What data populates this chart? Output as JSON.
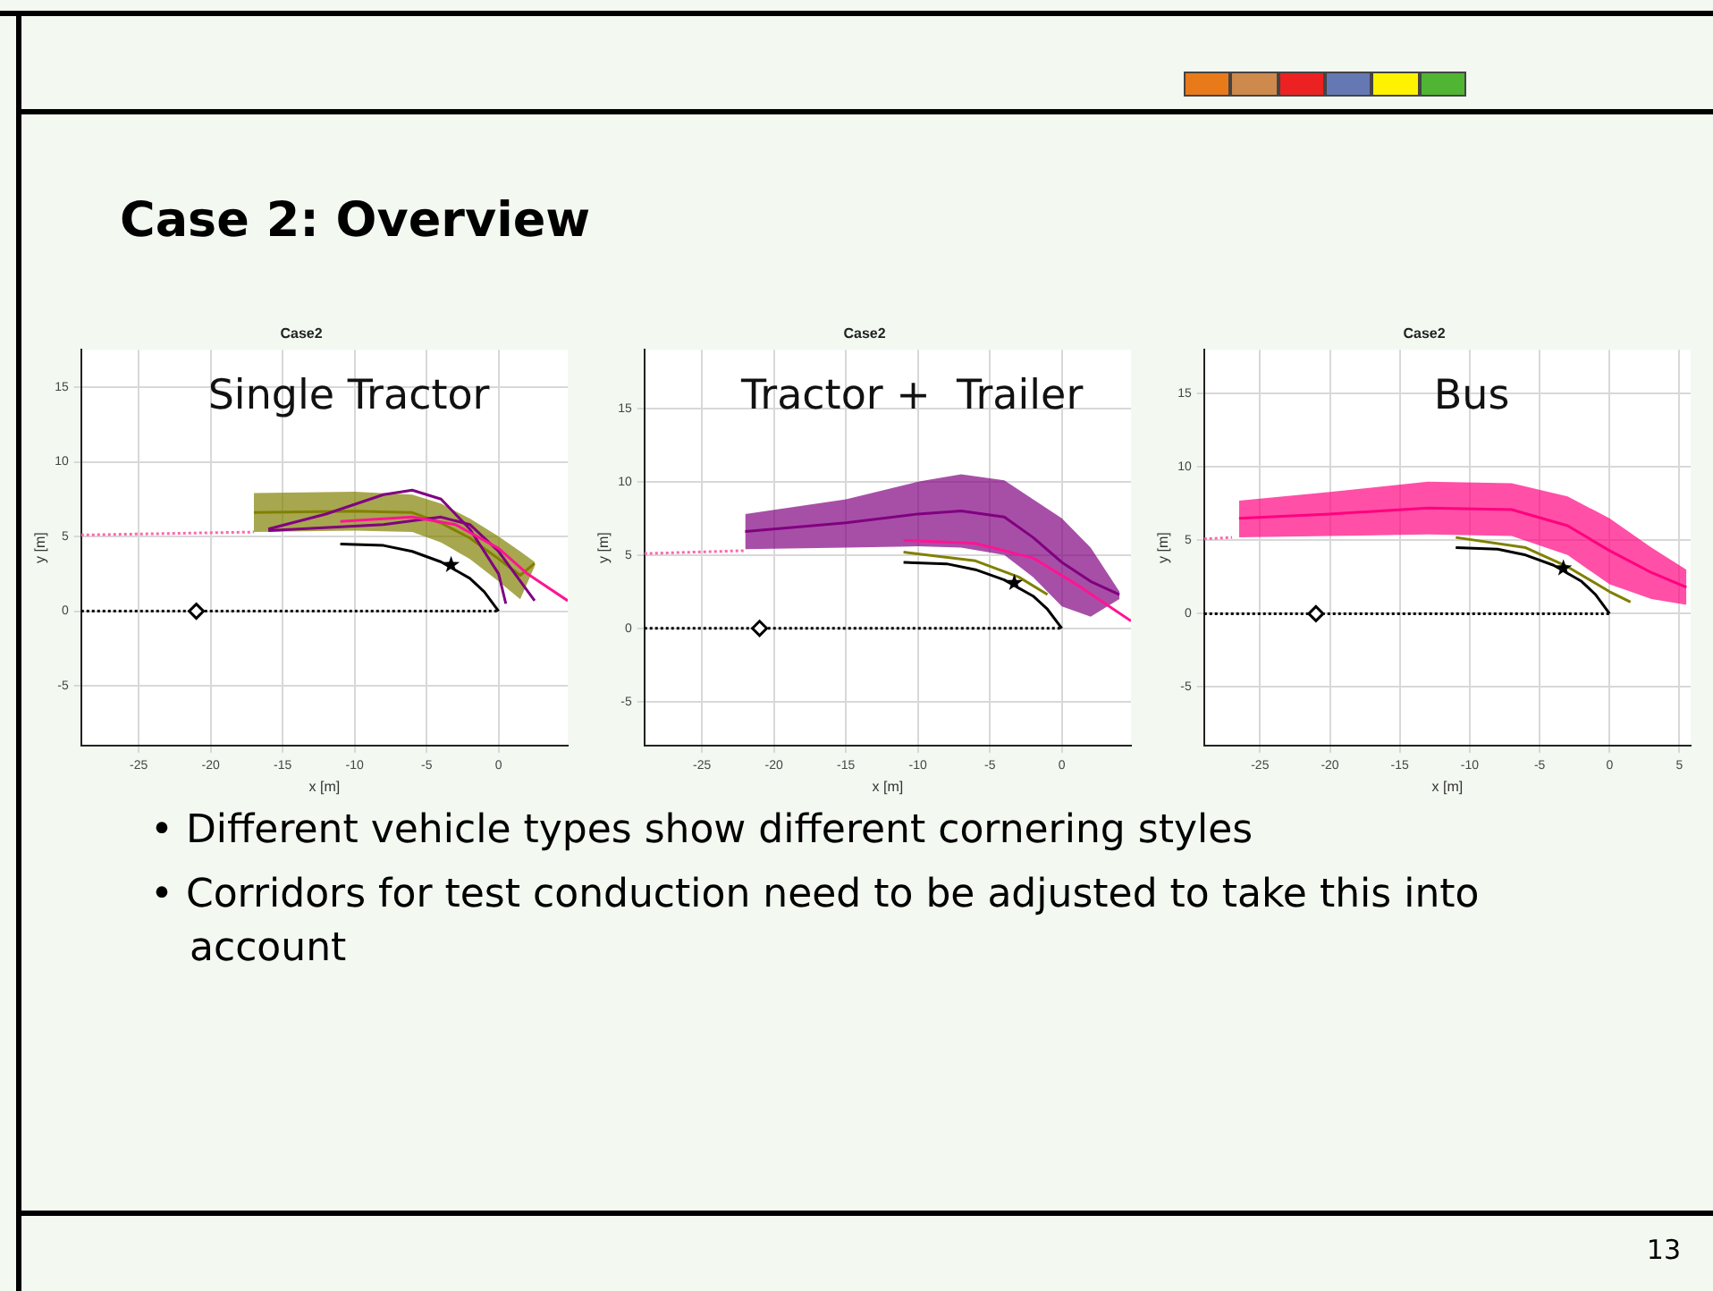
{
  "chart_data": [
    {
      "type": "line",
      "title": "Case2",
      "xlabel": "x [m]",
      "ylabel": "y [m]",
      "annotations": [
        "Single Tractor"
      ],
      "xlim": [
        -29,
        4.8
      ],
      "ylim": [
        -9,
        17.5
      ],
      "xticks": [
        -25,
        -20,
        -15,
        -10,
        -5,
        0
      ],
      "yticks": [
        -5,
        0,
        5,
        10,
        15
      ],
      "grid": true,
      "legend": false,
      "series": [
        {
          "color": "#000000",
          "x": [
            -29,
            0
          ],
          "values": [
            0,
            0
          ],
          "line_style": "dotted",
          "marker": "none"
        },
        {
          "color": "#ff66aa",
          "x": [
            -29,
            -17
          ],
          "values": [
            5.1,
            5.3
          ],
          "line_style": "dotted",
          "marker": "none"
        },
        {
          "color": "#808000",
          "x": [
            -17,
            -10,
            -6,
            -4,
            -2,
            0,
            1.5,
            2.5
          ],
          "values": [
            6.6,
            6.7,
            6.6,
            5.9,
            4.9,
            3.5,
            2.4,
            3.2
          ],
          "lower": [
            5.3,
            5.4,
            5.3,
            4.6,
            3.5,
            2.0,
            0.8,
            3.0
          ],
          "upper": [
            7.9,
            8.0,
            7.8,
            7.2,
            6.2,
            5.0,
            4.0,
            3.3
          ],
          "marker": "none"
        },
        {
          "color": "#800080",
          "x": [
            -16,
            -12,
            -8,
            -6,
            -4,
            -2,
            0,
            0.5
          ],
          "values": [
            5.5,
            6.5,
            7.8,
            8.1,
            7.5,
            5.5,
            2.5,
            0.5
          ],
          "marker": "none"
        },
        {
          "color": "#800080",
          "x": [
            -16,
            -8,
            -4,
            -2,
            0,
            2.5
          ],
          "values": [
            5.4,
            5.8,
            6.3,
            5.8,
            4.0,
            0.7
          ],
          "marker": "none"
        },
        {
          "color": "#ff1493",
          "x": [
            -11,
            -6,
            -3,
            0,
            2,
            4.8
          ],
          "values": [
            6.0,
            6.3,
            5.8,
            4.2,
            2.5,
            0.7
          ],
          "marker": "none"
        },
        {
          "color": "#000000",
          "x": [
            -11,
            -8,
            -6,
            -4,
            -2,
            -1,
            0
          ],
          "values": [
            4.5,
            4.4,
            4.0,
            3.3,
            2.2,
            1.3,
            0
          ],
          "marker": "none"
        },
        {
          "type": "scatter",
          "color": "#000000",
          "x": [
            -21
          ],
          "values": [
            0
          ],
          "marker": "diamond"
        },
        {
          "type": "scatter",
          "color": "#000000",
          "x": [
            -3.3
          ],
          "values": [
            3.1
          ],
          "marker": "star"
        }
      ]
    },
    {
      "type": "line",
      "title": "Case2",
      "xlabel": "x [m]",
      "ylabel": "y [m]",
      "annotations": [
        "Tractor +  Trailer"
      ],
      "xlim": [
        -29,
        4.8
      ],
      "ylim": [
        -8,
        19
      ],
      "xticks": [
        -25,
        -20,
        -15,
        -10,
        -5,
        0
      ],
      "yticks": [
        -5,
        0,
        5,
        10,
        15
      ],
      "grid": true,
      "legend": false,
      "series": [
        {
          "color": "#000000",
          "x": [
            -29,
            0
          ],
          "values": [
            0,
            0
          ],
          "line_style": "dotted",
          "marker": "none"
        },
        {
          "color": "#ff66aa",
          "x": [
            -29,
            -22
          ],
          "values": [
            5.1,
            5.3
          ],
          "line_style": "dotted",
          "marker": "none"
        },
        {
          "color": "#800080",
          "x": [
            -22,
            -15,
            -10,
            -7,
            -4,
            -2,
            0,
            2,
            4
          ],
          "values": [
            6.6,
            7.2,
            7.8,
            8.0,
            7.6,
            6.2,
            4.5,
            3.2,
            2.3
          ],
          "lower": [
            5.4,
            5.5,
            5.6,
            5.5,
            5.0,
            3.5,
            1.5,
            0.8,
            2.0
          ],
          "upper": [
            7.8,
            8.8,
            10.0,
            10.5,
            10.1,
            8.8,
            7.5,
            5.5,
            2.5
          ],
          "marker": "none"
        },
        {
          "color": "#ff1493",
          "x": [
            -11,
            -6,
            -2,
            1,
            4.8
          ],
          "values": [
            6.0,
            5.8,
            4.8,
            3.0,
            0.5
          ],
          "marker": "none"
        },
        {
          "color": "#808000",
          "x": [
            -11,
            -6,
            -3,
            -1
          ],
          "values": [
            5.2,
            4.6,
            3.5,
            2.3
          ],
          "marker": "none"
        },
        {
          "color": "#000000",
          "x": [
            -11,
            -8,
            -6,
            -4,
            -2,
            -1,
            0
          ],
          "values": [
            4.5,
            4.4,
            4.0,
            3.3,
            2.2,
            1.3,
            0
          ],
          "marker": "none"
        },
        {
          "type": "scatter",
          "color": "#000000",
          "x": [
            -21
          ],
          "values": [
            0
          ],
          "marker": "diamond"
        },
        {
          "type": "scatter",
          "color": "#000000",
          "x": [
            -3.3
          ],
          "values": [
            3.1
          ],
          "marker": "star"
        }
      ]
    },
    {
      "type": "line",
      "title": "Case2",
      "xlabel": "x [m]",
      "ylabel": "y [m]",
      "annotations": [
        "Bus"
      ],
      "xlim": [
        -29,
        5.8
      ],
      "ylim": [
        -9,
        18
      ],
      "xticks": [
        -25,
        -20,
        -15,
        -10,
        -5,
        0,
        5
      ],
      "yticks": [
        -5,
        0,
        5,
        10,
        15
      ],
      "grid": true,
      "legend": false,
      "series": [
        {
          "color": "#000000",
          "x": [
            -29,
            0
          ],
          "values": [
            0,
            0
          ],
          "line_style": "dotted",
          "marker": "none"
        },
        {
          "color": "#ff66aa",
          "x": [
            -29,
            -27
          ],
          "values": [
            5.1,
            5.2
          ],
          "line_style": "dotted",
          "marker": "none"
        },
        {
          "color": "#808000",
          "x": [
            -11,
            -6,
            -3,
            0,
            1.5
          ],
          "values": [
            5.2,
            4.5,
            3.2,
            1.5,
            0.8
          ],
          "marker": "none"
        },
        {
          "color": "#ff007f",
          "x": [
            -26.5,
            -20,
            -13,
            -7,
            -3,
            0,
            3,
            5.5
          ],
          "values": [
            6.5,
            6.8,
            7.2,
            7.1,
            6.0,
            4.3,
            2.8,
            1.8
          ],
          "lower": [
            5.2,
            5.3,
            5.4,
            5.3,
            4.0,
            2.0,
            1.0,
            0.6
          ],
          "upper": [
            7.7,
            8.3,
            9.0,
            8.9,
            8.0,
            6.5,
            4.5,
            3.0
          ],
          "marker": "none"
        },
        {
          "color": "#000000",
          "x": [
            -11,
            -8,
            -6,
            -4,
            -2,
            -1,
            0
          ],
          "values": [
            4.5,
            4.4,
            4.0,
            3.3,
            2.2,
            1.3,
            0
          ],
          "marker": "none"
        },
        {
          "type": "scatter",
          "color": "#000000",
          "x": [
            -21
          ],
          "values": [
            0
          ],
          "marker": "diamond"
        },
        {
          "type": "scatter",
          "color": "#000000",
          "x": [
            -3.3
          ],
          "values": [
            3.1
          ],
          "marker": "star"
        }
      ]
    },
    {
      "type": "other",
      "title": "Case 2: Overview",
      "annotations": [
        "• Different vehicle types show different cornering styles",
        "• Corridors for test conduction need to be adjusted to take this into account",
        "13"
      ]
    }
  ]
}
